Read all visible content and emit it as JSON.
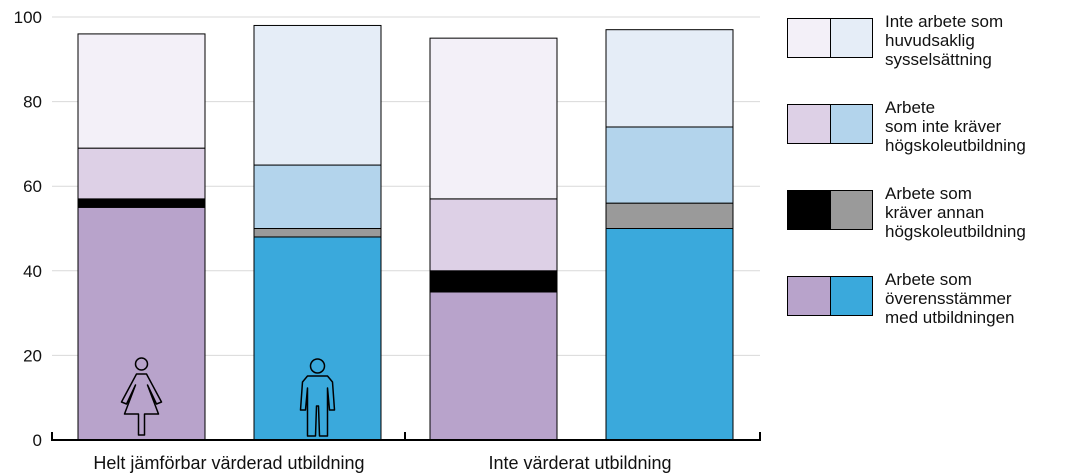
{
  "chart_data": {
    "type": "bar",
    "stacked": true,
    "ylim": [
      0,
      100
    ],
    "yticks": [
      0,
      20,
      40,
      60,
      80,
      100
    ],
    "grid": true,
    "legend_position": "right",
    "groups": [
      "Helt jämförbar värderad utbildning",
      "Inte värderat utbildning"
    ],
    "bars": [
      {
        "group": 0,
        "sex": "women",
        "icon": "woman-icon",
        "values": [
          55,
          2,
          12,
          27
        ]
      },
      {
        "group": 0,
        "sex": "men",
        "icon": "man-icon",
        "values": [
          48,
          2,
          15,
          33
        ]
      },
      {
        "group": 1,
        "sex": "women",
        "icon": "",
        "values": [
          35,
          5,
          17,
          38
        ]
      },
      {
        "group": 1,
        "sex": "men",
        "icon": "",
        "values": [
          50,
          6,
          18,
          23
        ]
      }
    ],
    "series": [
      {
        "name": "Arbete som\növerensstämmer\nmed utbildningen",
        "colors": {
          "women": "#b8a3cb",
          "men": "#3aa9dc"
        }
      },
      {
        "name": "Arbete som\nkräver annan\nhögskoleutbildning",
        "colors": {
          "women": "#000000",
          "men": "#9a9a9a"
        }
      },
      {
        "name": "Arbete\nsom inte kräver\nhögskoleutbildning",
        "colors": {
          "women": "#ddd0e6",
          "men": "#b3d4ec"
        }
      },
      {
        "name": "Inte arbete som\nhuvudsaklig\nsysselsättning",
        "colors": {
          "women": "#f3f0f8",
          "men": "#e5edf7"
        }
      }
    ]
  }
}
